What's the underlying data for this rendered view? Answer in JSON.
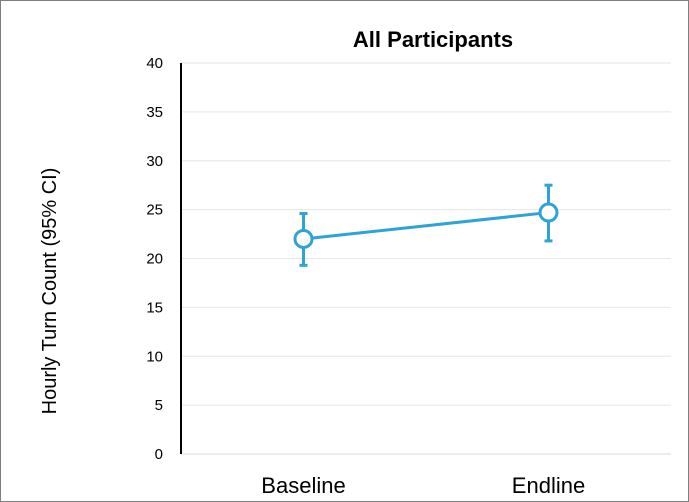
{
  "chart_data": {
    "type": "line",
    "title": "All Participants",
    "xlabel": "",
    "ylabel": "Hourly Turn Count (95% CI)",
    "categories": [
      "Baseline",
      "Endline"
    ],
    "series": [
      {
        "values": [
          22.0,
          24.7
        ],
        "ci_lower": [
          19.3,
          21.8
        ],
        "ci_upper": [
          24.6,
          27.5
        ]
      }
    ],
    "ylim": [
      0,
      40
    ],
    "yticks": [
      0,
      5,
      10,
      15,
      20,
      25,
      30,
      35,
      40
    ],
    "grid": true,
    "legend": "none",
    "colors": {
      "series": "#2ea3d8",
      "grid": "#e6e6e6",
      "axis": "#000000"
    }
  }
}
